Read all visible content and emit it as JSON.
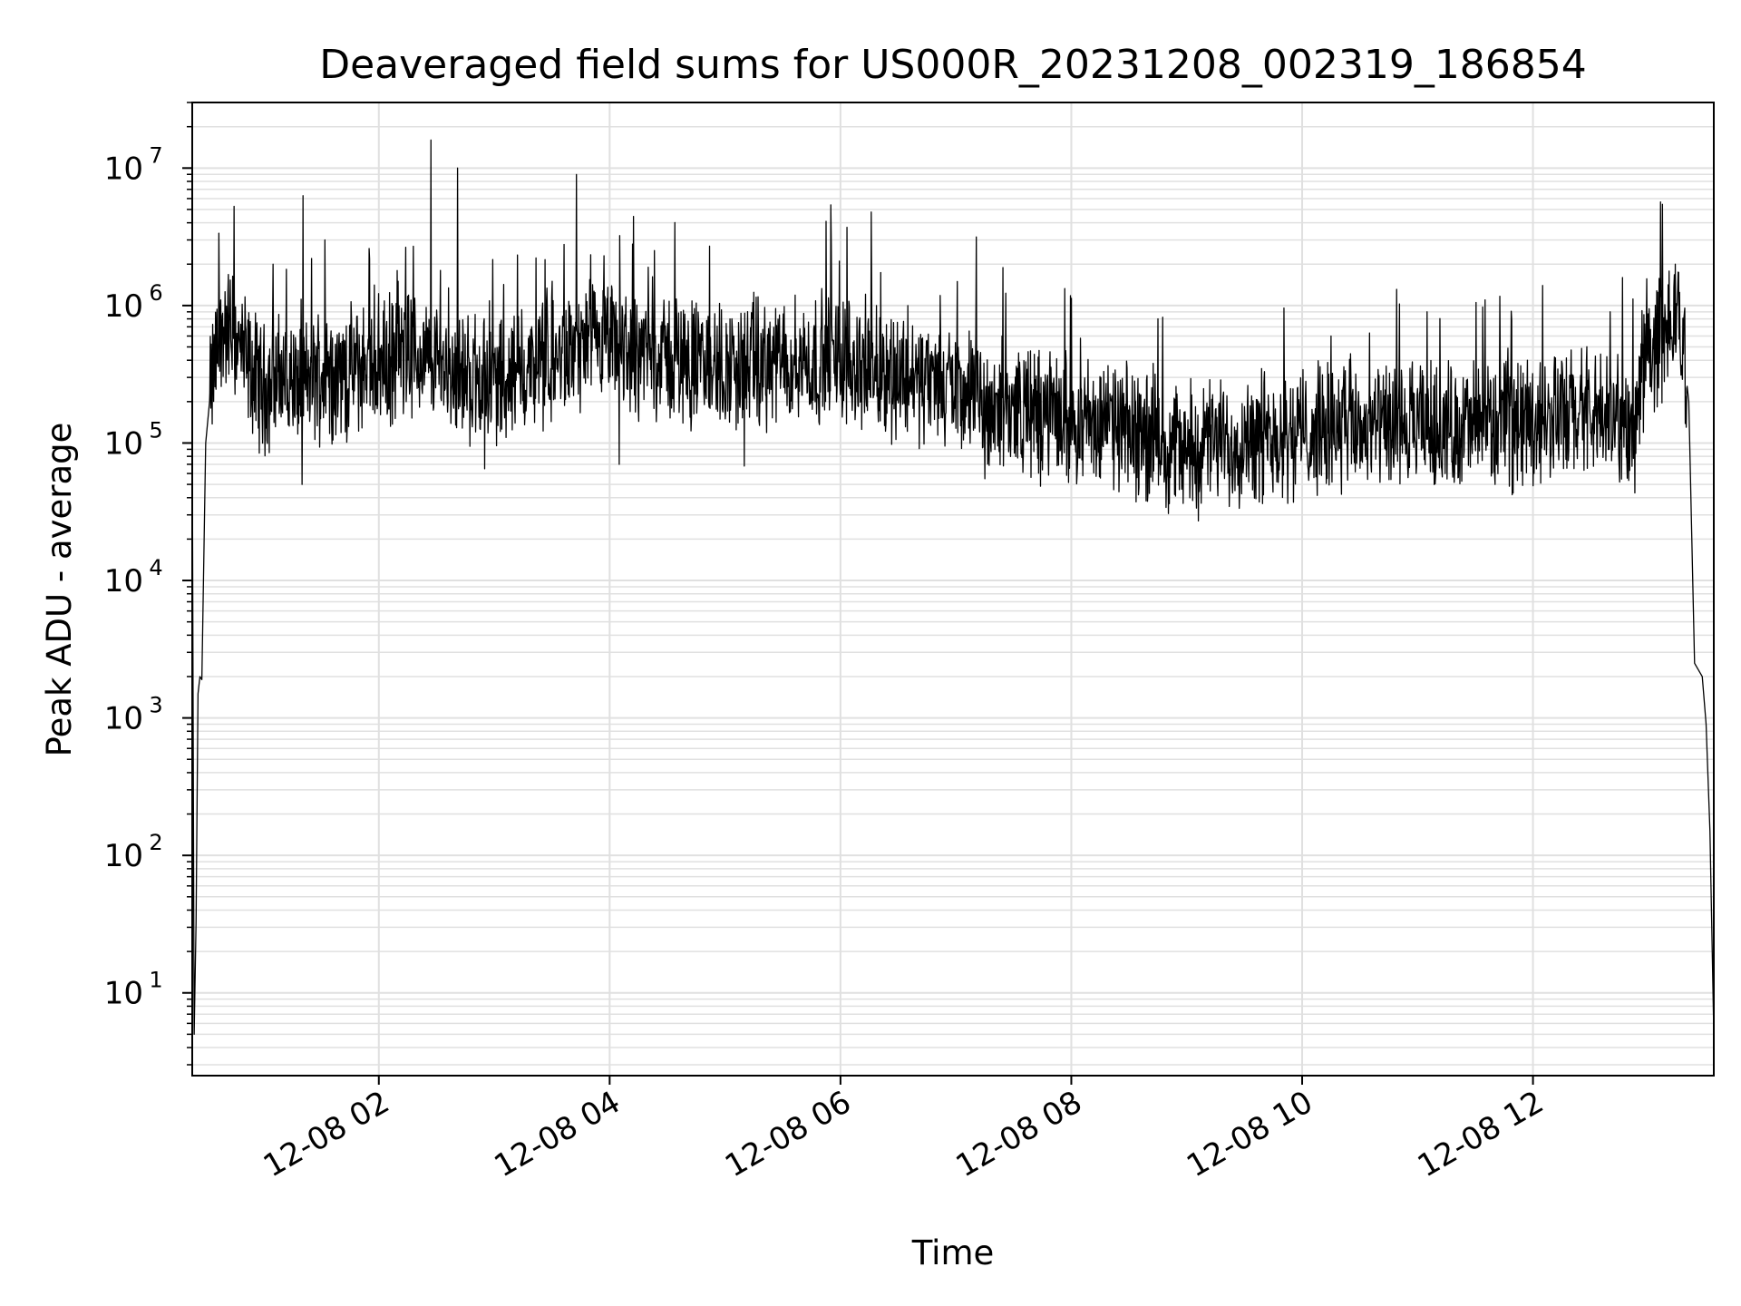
{
  "chart_data": {
    "type": "line",
    "title": "Deaveraged field sums for US000R_20231208_002319_186854",
    "xlabel": "Time",
    "ylabel": "Peak ADU - average",
    "yscale": "log",
    "ylim": [
      2.5,
      30000000
    ],
    "xlim": [
      "2023-12-08 00:23",
      "2023-12-08 13:34"
    ],
    "grid": true,
    "line_color": "#000000",
    "grid_color": "#e0e0e0",
    "x_ticks": [
      {
        "value": "2023-12-08 02:00",
        "label": "12-08 02"
      },
      {
        "value": "2023-12-08 04:00",
        "label": "12-08 04"
      },
      {
        "value": "2023-12-08 06:00",
        "label": "12-08 06"
      },
      {
        "value": "2023-12-08 08:00",
        "label": "12-08 08"
      },
      {
        "value": "2023-12-08 10:00",
        "label": "12-08 10"
      },
      {
        "value": "2023-12-08 12:00",
        "label": "12-08 12"
      }
    ],
    "y_ticks": [
      {
        "value": 10,
        "base": "10",
        "exp": "1"
      },
      {
        "value": 100,
        "base": "10",
        "exp": "2"
      },
      {
        "value": 1000,
        "base": "10",
        "exp": "3"
      },
      {
        "value": 10000,
        "base": "10",
        "exp": "4"
      },
      {
        "value": 100000,
        "base": "10",
        "exp": "5"
      },
      {
        "value": 1000000,
        "base": "10",
        "exp": "6"
      },
      {
        "value": 10000000,
        "base": "10",
        "exp": "7"
      }
    ],
    "series": [
      {
        "points": [
          [
            "2023-12-08 00:23",
            130000
          ],
          [
            "2023-12-08 00:24",
            5
          ],
          [
            "2023-12-08 00:25",
            33
          ],
          [
            "2023-12-08 00:26",
            1500
          ],
          [
            "2023-12-08 00:27",
            2000
          ],
          [
            "2023-12-08 00:28",
            1900
          ],
          [
            "2023-12-08 00:30",
            100000
          ],
          [
            "2023-12-08 00:32",
            200000
          ],
          [
            "2023-12-08 00:35",
            400000
          ],
          [
            "2023-12-08 00:40",
            700000
          ],
          [
            "2023-12-08 00:45",
            600000
          ],
          [
            "2023-12-08 00:52",
            350000
          ],
          [
            "2023-12-08 01:00",
            250000
          ],
          [
            "2023-12-08 01:10",
            300000
          ],
          [
            "2023-12-08 01:20",
            260000
          ],
          [
            "2023-12-08 01:30",
            330000
          ],
          [
            "2023-12-08 01:40",
            300000
          ],
          [
            "2023-12-08 01:50",
            350000
          ],
          [
            "2023-12-08 02:00",
            380000
          ],
          [
            "2023-12-08 02:10",
            400000
          ],
          [
            "2023-12-08 02:20",
            420000
          ],
          [
            "2023-12-08 02:30",
            380000
          ],
          [
            "2023-12-08 02:45",
            300000
          ],
          [
            "2023-12-08 03:00",
            280000
          ],
          [
            "2023-12-08 03:15",
            320000
          ],
          [
            "2023-12-08 03:30",
            380000
          ],
          [
            "2023-12-08 03:45",
            480000
          ],
          [
            "2023-12-08 04:00",
            500000
          ],
          [
            "2023-12-08 04:15",
            450000
          ],
          [
            "2023-12-08 04:30",
            420000
          ],
          [
            "2023-12-08 04:45",
            380000
          ],
          [
            "2023-12-08 05:00",
            350000
          ],
          [
            "2023-12-08 05:15",
            360000
          ],
          [
            "2023-12-08 05:30",
            380000
          ],
          [
            "2023-12-08 05:45",
            400000
          ],
          [
            "2023-12-08 06:00",
            420000
          ],
          [
            "2023-12-08 06:15",
            350000
          ],
          [
            "2023-12-08 06:30",
            320000
          ],
          [
            "2023-12-08 06:45",
            280000
          ],
          [
            "2023-12-08 07:00",
            250000
          ],
          [
            "2023-12-08 07:15",
            200000
          ],
          [
            "2023-12-08 07:30",
            180000
          ],
          [
            "2023-12-08 07:45",
            160000
          ],
          [
            "2023-12-08 08:00",
            150000
          ],
          [
            "2023-12-08 08:15",
            140000
          ],
          [
            "2023-12-08 08:30",
            120000
          ],
          [
            "2023-12-08 08:45",
            100000
          ],
          [
            "2023-12-08 09:00",
            90000
          ],
          [
            "2023-12-08 09:15",
            100000
          ],
          [
            "2023-12-08 09:30",
            110000
          ],
          [
            "2023-12-08 09:45",
            120000
          ],
          [
            "2023-12-08 10:00",
            120000
          ],
          [
            "2023-12-08 10:20",
            125000
          ],
          [
            "2023-12-08 10:40",
            125000
          ],
          [
            "2023-12-08 11:00",
            130000
          ],
          [
            "2023-12-08 11:20",
            130000
          ],
          [
            "2023-12-08 11:40",
            140000
          ],
          [
            "2023-12-08 12:00",
            150000
          ],
          [
            "2023-12-08 12:20",
            160000
          ],
          [
            "2023-12-08 12:40",
            150000
          ],
          [
            "2023-12-08 12:54",
            120000
          ],
          [
            "2023-12-08 12:56",
            400000
          ],
          [
            "2023-12-08 13:05",
            500000
          ],
          [
            "2023-12-08 13:10",
            600000
          ],
          [
            "2023-12-08 13:15",
            800000
          ],
          [
            "2023-12-08 13:18",
            500000
          ],
          [
            "2023-12-08 13:21",
            200000
          ],
          [
            "2023-12-08 13:24",
            2500
          ],
          [
            "2023-12-08 13:28",
            2000
          ],
          [
            "2023-12-08 13:30",
            900
          ],
          [
            "2023-12-08 13:32",
            150
          ],
          [
            "2023-12-08 13:34",
            5
          ]
        ],
        "peaks": [
          [
            "2023-12-08 01:05",
            2000000
          ],
          [
            "2023-12-08 01:25",
            2200000
          ],
          [
            "2023-12-08 01:32",
            3000000
          ],
          [
            "2023-12-08 01:55",
            2600000
          ],
          [
            "2023-12-08 02:10",
            1500000
          ],
          [
            "2023-12-08 02:18",
            2700000
          ],
          [
            "2023-12-08 02:27",
            16000000
          ],
          [
            "2023-12-08 02:32",
            1800000
          ],
          [
            "2023-12-08 02:41",
            10000000
          ],
          [
            "2023-12-08 03:30",
            1500000
          ],
          [
            "2023-12-08 03:57",
            2300000
          ],
          [
            "2023-12-08 04:12",
            2800000
          ],
          [
            "2023-12-08 04:20",
            1900000
          ],
          [
            "2023-12-08 05:10",
            1500000
          ],
          [
            "2023-12-08 05:55",
            5400000
          ],
          [
            "2023-12-08 06:35",
            1000000
          ],
          [
            "2023-12-08 08:45",
            800000
          ],
          [
            "2023-12-08 09:40",
            700000
          ],
          [
            "2023-12-08 10:15",
            600000
          ],
          [
            "2023-12-08 11:05",
            900000
          ],
          [
            "2023-12-08 11:35",
            1100000
          ],
          [
            "2023-12-08 12:05",
            1400000
          ],
          [
            "2023-12-08 12:40",
            900000
          ],
          [
            "2023-12-08 13:14",
            2000000
          ]
        ],
        "dips": [
          [
            "2023-12-08 01:20",
            50000
          ],
          [
            "2023-12-08 02:55",
            65000
          ],
          [
            "2023-12-08 04:05",
            70000
          ],
          [
            "2023-12-08 05:10",
            68000
          ],
          [
            "2023-12-08 07:15",
            55000
          ],
          [
            "2023-12-08 08:35",
            42000
          ],
          [
            "2023-12-08 09:25",
            45000
          ],
          [
            "2023-12-08 09:40",
            42000
          ],
          [
            "2023-12-08 10:55",
            56000
          ],
          [
            "2023-12-08 11:40",
            60000
          ]
        ]
      }
    ]
  }
}
